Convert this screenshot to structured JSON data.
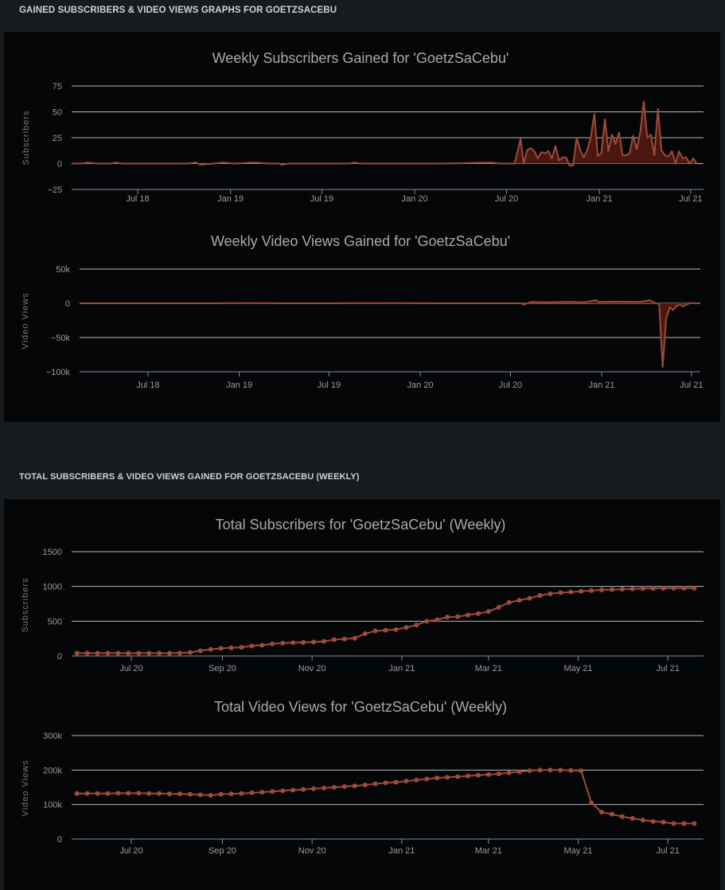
{
  "sections": [
    {
      "heading": "GAINED SUBSCRIBERS & VIDEO VIEWS GRAPHS FOR GOETZSACEBU"
    },
    {
      "heading": "TOTAL SUBSCRIBERS & VIDEO VIEWS GAINED FOR GOETZSACEBU (WEEKLY)"
    }
  ],
  "colors": {
    "line": "#a04a3a",
    "fill": "#4a1810",
    "grid": "#b8b8b8",
    "axis": "#8090a0"
  },
  "chart_data": [
    {
      "type": "area",
      "title": "Weekly Subscribers Gained for 'GoetzSaCebu'",
      "ylabel": "Subscribers",
      "xlabel": "",
      "x_unit": "days since 2018-07-01",
      "ylim": [
        -25,
        75
      ],
      "yticks": [
        75,
        50,
        25,
        0,
        -25
      ],
      "ytick_labels": [
        "75",
        "50",
        "25",
        "0",
        "−25"
      ],
      "xticks": [
        0,
        184,
        365,
        549,
        731,
        915,
        1096
      ],
      "xtick_labels": [
        "Jul 18",
        "Jan 19",
        "Jul 19",
        "Jan 20",
        "Jul 20",
        "Jan 21",
        "Jul 21"
      ],
      "grid": true,
      "points": [
        [
          -131,
          0
        ],
        [
          -110,
          0
        ],
        [
          -100,
          1
        ],
        [
          -80,
          0
        ],
        [
          -50,
          0
        ],
        [
          -45,
          1
        ],
        [
          -30,
          0
        ],
        [
          100,
          0
        ],
        [
          115,
          1
        ],
        [
          125,
          -1
        ],
        [
          150,
          0
        ],
        [
          170,
          1
        ],
        [
          190,
          0
        ],
        [
          230,
          1
        ],
        [
          260,
          0
        ],
        [
          280,
          0
        ],
        [
          285,
          -1
        ],
        [
          300,
          0
        ],
        [
          420,
          0
        ],
        [
          430,
          1
        ],
        [
          440,
          0
        ],
        [
          600,
          0
        ],
        [
          700,
          1
        ],
        [
          720,
          0
        ],
        [
          747,
          0
        ],
        [
          759,
          24
        ],
        [
          765,
          0
        ],
        [
          772,
          13
        ],
        [
          779,
          15
        ],
        [
          786,
          12
        ],
        [
          793,
          5
        ],
        [
          800,
          11
        ],
        [
          807,
          10
        ],
        [
          814,
          12
        ],
        [
          821,
          5
        ],
        [
          828,
          17
        ],
        [
          835,
          3
        ],
        [
          842,
          6
        ],
        [
          849,
          6
        ],
        [
          856,
          -2
        ],
        [
          863,
          -2
        ],
        [
          870,
          25
        ],
        [
          877,
          13
        ],
        [
          884,
          6
        ],
        [
          891,
          13
        ],
        [
          898,
          25
        ],
        [
          905,
          48
        ],
        [
          912,
          7
        ],
        [
          919,
          10
        ],
        [
          926,
          43
        ],
        [
          933,
          12
        ],
        [
          940,
          28
        ],
        [
          947,
          19
        ],
        [
          954,
          30
        ],
        [
          961,
          8
        ],
        [
          968,
          8
        ],
        [
          975,
          10
        ],
        [
          982,
          27
        ],
        [
          989,
          14
        ],
        [
          996,
          30
        ],
        [
          1003,
          60
        ],
        [
          1010,
          25
        ],
        [
          1017,
          28
        ],
        [
          1024,
          8
        ],
        [
          1031,
          53
        ],
        [
          1038,
          13
        ],
        [
          1045,
          8
        ],
        [
          1052,
          7
        ],
        [
          1059,
          12
        ],
        [
          1066,
          0
        ],
        [
          1073,
          12
        ],
        [
          1080,
          5
        ],
        [
          1087,
          6
        ],
        [
          1094,
          0
        ],
        [
          1101,
          5
        ],
        [
          1108,
          0
        ]
      ]
    },
    {
      "type": "area",
      "title": "Weekly Video Views Gained for 'GoetzSaCebu'",
      "ylabel": "Video Views",
      "xlabel": "",
      "x_unit": "days since 2018-07-01",
      "ylim": [
        -100000,
        50000
      ],
      "yticks": [
        50000,
        0,
        -50000,
        -100000
      ],
      "ytick_labels": [
        "50k",
        "0",
        "−50k",
        "−100k"
      ],
      "xticks": [
        0,
        184,
        365,
        549,
        731,
        915,
        1096
      ],
      "xtick_labels": [
        "Jul 18",
        "Jan 19",
        "Jul 19",
        "Jan 20",
        "Jul 20",
        "Jan 21",
        "Jul 21"
      ],
      "grid": true,
      "points": [
        [
          -135,
          0
        ],
        [
          100,
          0
        ],
        [
          200,
          300
        ],
        [
          300,
          0
        ],
        [
          500,
          200
        ],
        [
          700,
          0
        ],
        [
          752,
          0
        ],
        [
          758,
          -2000
        ],
        [
          765,
          0
        ],
        [
          772,
          2000
        ],
        [
          800,
          1500
        ],
        [
          850,
          2000
        ],
        [
          880,
          1500
        ],
        [
          903,
          4500
        ],
        [
          910,
          2000
        ],
        [
          950,
          2500
        ],
        [
          990,
          2000
        ],
        [
          1012,
          4500
        ],
        [
          1024,
          0
        ],
        [
          1031,
          -1000
        ],
        [
          1038,
          -93000
        ],
        [
          1045,
          -23000
        ],
        [
          1052,
          -6000
        ],
        [
          1059,
          -10000
        ],
        [
          1066,
          -4000
        ],
        [
          1073,
          -2000
        ],
        [
          1079,
          -4500
        ],
        [
          1093,
          500
        ],
        [
          1109,
          0
        ]
      ]
    },
    {
      "type": "line",
      "title": "Total Subscribers for 'GoetzSaCebu' (Weekly)",
      "ylabel": "Subscribers",
      "xlabel": "",
      "x_unit": "days since 2020-07-01",
      "ylim": [
        0,
        1500
      ],
      "yticks": [
        1500,
        1000,
        500,
        0
      ],
      "ytick_labels": [
        "1500",
        "1000",
        "500",
        "0"
      ],
      "xticks": [
        0,
        62,
        123,
        184,
        243,
        304,
        365
      ],
      "xtick_labels": [
        "Jul 20",
        "Sep 20",
        "Nov 20",
        "Jan 21",
        "Mar 21",
        "May 21",
        "Jul 21"
      ],
      "grid": true,
      "x_start": -37,
      "x_step": 7,
      "values": [
        40,
        40,
        40,
        40,
        40,
        40,
        40,
        40,
        40,
        40,
        42,
        50,
        75,
        95,
        110,
        118,
        125,
        145,
        155,
        175,
        185,
        190,
        195,
        200,
        210,
        235,
        245,
        255,
        320,
        360,
        370,
        380,
        410,
        445,
        500,
        520,
        560,
        565,
        590,
        610,
        640,
        700,
        770,
        800,
        830,
        870,
        895,
        910,
        920,
        930,
        940,
        950,
        955,
        960,
        965,
        970,
        972,
        973,
        974,
        975,
        975
      ]
    },
    {
      "type": "line",
      "title": "Total Video Views for 'GoetzSaCebu' (Weekly)",
      "ylabel": "Video Views",
      "xlabel": "",
      "x_unit": "days since 2020-07-01",
      "ylim": [
        0,
        300000
      ],
      "yticks": [
        300000,
        200000,
        100000,
        0
      ],
      "ytick_labels": [
        "300k",
        "200k",
        "100k",
        "0"
      ],
      "xticks": [
        0,
        62,
        123,
        184,
        243,
        304,
        365
      ],
      "xtick_labels": [
        "Jul 20",
        "Sep 20",
        "Nov 20",
        "Jan 21",
        "Mar 21",
        "May 21",
        "Jul 21"
      ],
      "grid": true,
      "x_start": -37,
      "x_step": 7,
      "values": [
        132000,
        132000,
        132000,
        132000,
        133000,
        133000,
        133000,
        132000,
        132000,
        131000,
        131000,
        130000,
        128000,
        127000,
        130000,
        131000,
        132000,
        134000,
        136000,
        138000,
        140000,
        142000,
        144000,
        146000,
        148000,
        150000,
        152000,
        154000,
        157000,
        160000,
        163000,
        165000,
        168000,
        171000,
        174000,
        177000,
        179000,
        181000,
        183000,
        185000,
        187000,
        189000,
        192000,
        195000,
        198000,
        200000,
        200000,
        200000,
        199000,
        198000,
        105000,
        78000,
        72000,
        65000,
        60000,
        55000,
        51000,
        49000,
        45000,
        45000,
        45000
      ]
    }
  ]
}
